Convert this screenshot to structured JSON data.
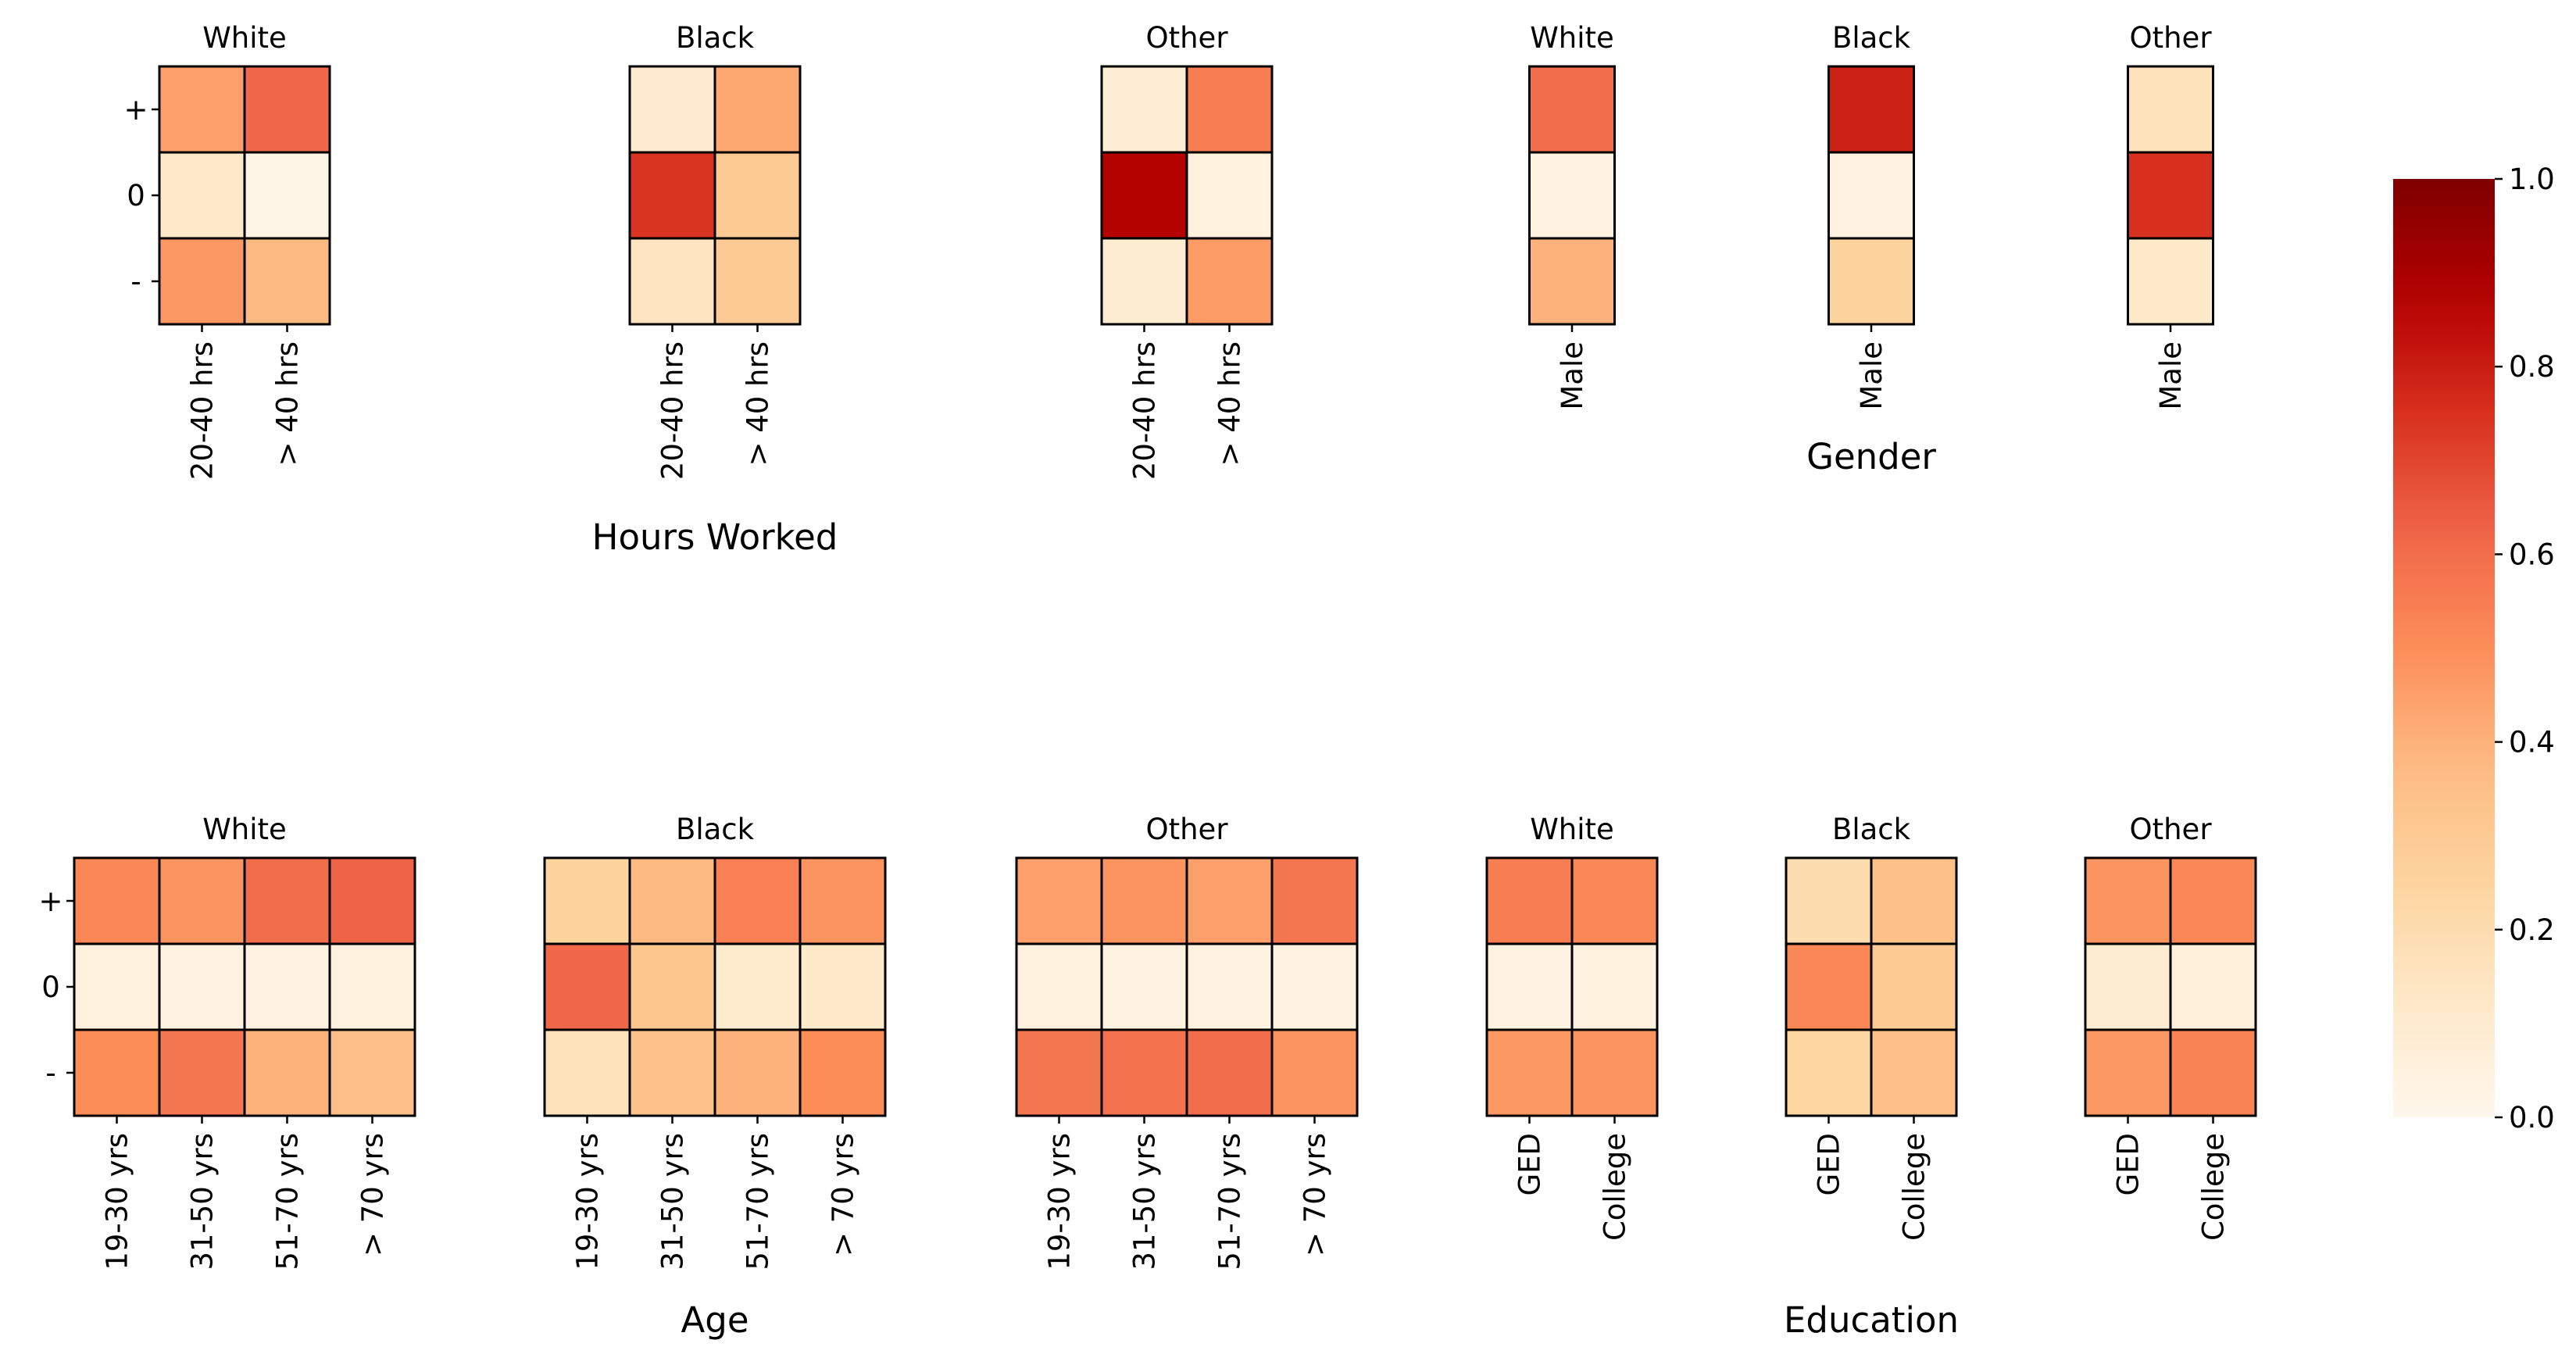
{
  "figure": {
    "colormap": "OrRd",
    "colorbar": {
      "min": 0.0,
      "max": 1.0,
      "ticks": [
        "0.0",
        "0.2",
        "0.4",
        "0.6",
        "0.8",
        "1.0"
      ]
    },
    "row_labels": [
      "+",
      "0",
      "-"
    ]
  },
  "chart_data": [
    {
      "type": "heatmap",
      "group": "Hours Worked",
      "title": "White",
      "xlabel": "",
      "ylabel": "",
      "rows": [
        "+",
        "0",
        "-"
      ],
      "categories": [
        "20-40 hrs",
        "> 40 hrs"
      ],
      "values": [
        [
          0.45,
          0.62
        ],
        [
          0.12,
          0.02
        ],
        [
          0.47,
          0.38
        ]
      ]
    },
    {
      "type": "heatmap",
      "group": "Hours Worked",
      "title": "Black",
      "xlabel": "Hours Worked",
      "ylabel": "",
      "rows": [
        "+",
        "0",
        "-"
      ],
      "categories": [
        "20-40 hrs",
        "> 40 hrs"
      ],
      "values": [
        [
          0.1,
          0.43
        ],
        [
          0.74,
          0.3
        ],
        [
          0.15,
          0.3
        ]
      ]
    },
    {
      "type": "heatmap",
      "group": "Hours Worked",
      "title": "Other",
      "xlabel": "",
      "ylabel": "",
      "rows": [
        "+",
        "0",
        "-"
      ],
      "categories": [
        "20-40 hrs",
        "> 40 hrs"
      ],
      "values": [
        [
          0.08,
          0.55
        ],
        [
          0.87,
          0.05
        ],
        [
          0.09,
          0.46
        ]
      ]
    },
    {
      "type": "heatmap",
      "group": "Gender",
      "title": "White",
      "xlabel": "",
      "ylabel": "",
      "rows": [
        "+",
        "0",
        "-"
      ],
      "categories": [
        "Male"
      ],
      "values": [
        [
          0.6
        ],
        [
          0.04
        ],
        [
          0.4
        ]
      ]
    },
    {
      "type": "heatmap",
      "group": "Gender",
      "title": "Black",
      "xlabel": "Gender",
      "ylabel": "",
      "rows": [
        "+",
        "0",
        "-"
      ],
      "categories": [
        "Male"
      ],
      "values": [
        [
          0.79
        ],
        [
          0.04
        ],
        [
          0.25
        ]
      ]
    },
    {
      "type": "heatmap",
      "group": "Gender",
      "title": "Other",
      "xlabel": "",
      "ylabel": "",
      "rows": [
        "+",
        "0",
        "-"
      ],
      "categories": [
        "Male"
      ],
      "values": [
        [
          0.16
        ],
        [
          0.75
        ],
        [
          0.12
        ]
      ]
    },
    {
      "type": "heatmap",
      "group": "Age",
      "title": "White",
      "xlabel": "",
      "ylabel": "",
      "rows": [
        "+",
        "0",
        "-"
      ],
      "categories": [
        "19-30 yrs",
        "31-50 yrs",
        "51-70 yrs",
        "> 70 yrs"
      ],
      "values": [
        [
          0.52,
          0.48,
          0.6,
          0.63
        ],
        [
          0.05,
          0.04,
          0.04,
          0.05
        ],
        [
          0.5,
          0.57,
          0.4,
          0.36
        ]
      ]
    },
    {
      "type": "heatmap",
      "group": "Age",
      "title": "Black",
      "xlabel": "Age",
      "ylabel": "",
      "rows": [
        "+",
        "0",
        "-"
      ],
      "categories": [
        "19-30 yrs",
        "31-50 yrs",
        "51-70 yrs",
        "> 70 yrs"
      ],
      "values": [
        [
          0.25,
          0.38,
          0.54,
          0.48
        ],
        [
          0.62,
          0.32,
          0.11,
          0.12
        ],
        [
          0.16,
          0.34,
          0.4,
          0.5
        ]
      ]
    },
    {
      "type": "heatmap",
      "group": "Age",
      "title": "Other",
      "xlabel": "",
      "ylabel": "",
      "rows": [
        "+",
        "0",
        "-"
      ],
      "categories": [
        "19-30 yrs",
        "31-50 yrs",
        "51-70 yrs",
        "> 70 yrs"
      ],
      "values": [
        [
          0.45,
          0.48,
          0.45,
          0.57
        ],
        [
          0.05,
          0.04,
          0.04,
          0.04
        ],
        [
          0.57,
          0.58,
          0.6,
          0.48
        ]
      ]
    },
    {
      "type": "heatmap",
      "group": "Education",
      "title": "White",
      "xlabel": "",
      "ylabel": "",
      "rows": [
        "+",
        "0",
        "-"
      ],
      "categories": [
        "GED",
        "College"
      ],
      "values": [
        [
          0.55,
          0.52
        ],
        [
          0.04,
          0.05
        ],
        [
          0.47,
          0.48
        ]
      ]
    },
    {
      "type": "heatmap",
      "group": "Education",
      "title": "Black",
      "xlabel": "Education",
      "ylabel": "",
      "rows": [
        "+",
        "0",
        "-"
      ],
      "categories": [
        "GED",
        "College"
      ],
      "values": [
        [
          0.2,
          0.35
        ],
        [
          0.52,
          0.3
        ],
        [
          0.24,
          0.36
        ]
      ]
    },
    {
      "type": "heatmap",
      "group": "Education",
      "title": "Other",
      "xlabel": "",
      "ylabel": "",
      "rows": [
        "+",
        "0",
        "-"
      ],
      "categories": [
        "GED",
        "College"
      ],
      "values": [
        [
          0.48,
          0.52
        ],
        [
          0.09,
          0.06
        ],
        [
          0.47,
          0.53
        ]
      ]
    }
  ]
}
